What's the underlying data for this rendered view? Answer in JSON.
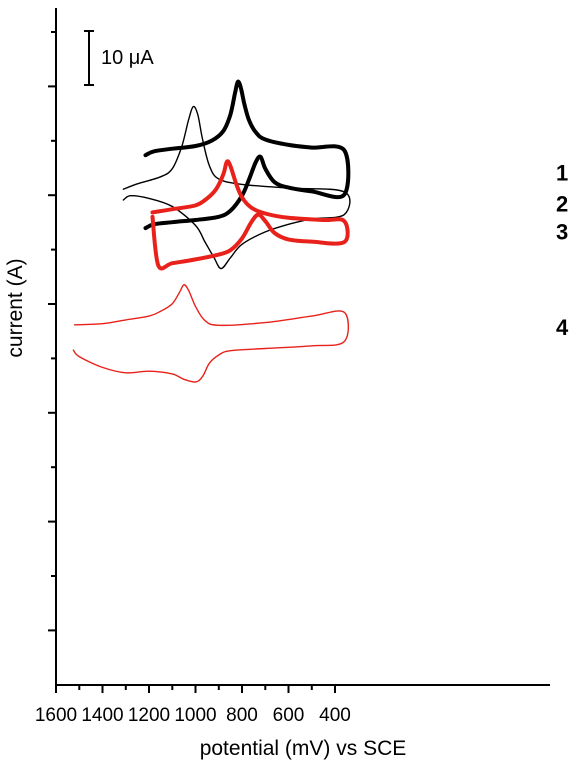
{
  "chart_data": {
    "type": "line",
    "title": "",
    "xlabel": "potential (mV) vs SCE",
    "ylabel": "current (A)",
    "xlim": [
      1600,
      360
    ],
    "x_reversed": true,
    "xticks": [
      "1600",
      "1400",
      "1200",
      "1000",
      "800",
      "600",
      "400"
    ],
    "scale_bar": "10 μA",
    "scale_bar_value_uA": 10,
    "y_tick_labels_shown": false,
    "series": [
      {
        "name": "1",
        "color": "#000000",
        "weight": "thick",
        "forward": [
          [
            1215,
            -13
          ],
          [
            1180,
            -12.3
          ],
          [
            1100,
            -11.8
          ],
          [
            1000,
            -11.3
          ],
          [
            930,
            -10.3
          ],
          [
            880,
            -8.5
          ],
          [
            850,
            -5.5
          ],
          [
            830,
            -1.5
          ],
          [
            818,
            0.6
          ],
          [
            805,
            -0.5
          ],
          [
            790,
            -3.5
          ],
          [
            770,
            -6.5
          ],
          [
            740,
            -8.8
          ],
          [
            700,
            -10.1
          ],
          [
            600,
            -11.1
          ],
          [
            500,
            -11.6
          ],
          [
            360,
            -12.1
          ]
        ],
        "reverse": [
          [
            360,
            -20.3
          ],
          [
            500,
            -19.7
          ],
          [
            600,
            -19.0
          ],
          [
            660,
            -18.0
          ],
          [
            700,
            -15.5
          ],
          [
            720,
            -13.3
          ],
          [
            740,
            -14.2
          ],
          [
            770,
            -17.5
          ],
          [
            800,
            -20.5
          ],
          [
            850,
            -23.3
          ],
          [
            900,
            -24.4
          ],
          [
            1000,
            -25.0
          ],
          [
            1100,
            -25.4
          ],
          [
            1180,
            -25.8
          ],
          [
            1215,
            -26.5
          ]
        ]
      },
      {
        "name": "2",
        "color": "#000000",
        "weight": "thin",
        "forward": [
          [
            1310,
            -19.3
          ],
          [
            1250,
            -18.3
          ],
          [
            1150,
            -17.0
          ],
          [
            1100,
            -15.5
          ],
          [
            1060,
            -11.5
          ],
          [
            1030,
            -6.5
          ],
          [
            1010,
            -4.0
          ],
          [
            990,
            -5.5
          ],
          [
            970,
            -10.0
          ],
          [
            940,
            -15.0
          ],
          [
            900,
            -17.4
          ],
          [
            800,
            -18.4
          ],
          [
            600,
            -19.1
          ],
          [
            360,
            -19.8
          ]
        ],
        "reverse": [
          [
            360,
            -24.0
          ],
          [
            500,
            -24.8
          ],
          [
            600,
            -25.8
          ],
          [
            700,
            -27.2
          ],
          [
            800,
            -29.5
          ],
          [
            850,
            -32.0
          ],
          [
            890,
            -34.0
          ],
          [
            920,
            -32.0
          ],
          [
            960,
            -29.0
          ],
          [
            1000,
            -26.0
          ],
          [
            1100,
            -22.5
          ],
          [
            1200,
            -21.0
          ],
          [
            1280,
            -20.5
          ],
          [
            1310,
            -21.3
          ]
        ]
      },
      {
        "name": "3",
        "color": "#e8221b",
        "weight": "thick",
        "forward": [
          [
            1185,
            -23.6
          ],
          [
            1100,
            -23.0
          ],
          [
            1000,
            -22.3
          ],
          [
            950,
            -21.0
          ],
          [
            910,
            -19.2
          ],
          [
            880,
            -16.5
          ],
          [
            865,
            -14.2
          ],
          [
            850,
            -15.0
          ],
          [
            825,
            -18.3
          ],
          [
            800,
            -20.8
          ],
          [
            760,
            -22.7
          ],
          [
            700,
            -23.8
          ],
          [
            600,
            -24.6
          ],
          [
            450,
            -25.0
          ],
          [
            360,
            -25.2
          ]
        ],
        "reverse": [
          [
            360,
            -29.1
          ],
          [
            500,
            -29.0
          ],
          [
            600,
            -28.6
          ],
          [
            660,
            -27.4
          ],
          [
            700,
            -25.2
          ],
          [
            730,
            -24.0
          ],
          [
            760,
            -25.4
          ],
          [
            800,
            -28.4
          ],
          [
            850,
            -30.6
          ],
          [
            900,
            -31.4
          ],
          [
            1000,
            -32.3
          ],
          [
            1100,
            -33.0
          ],
          [
            1160,
            -33.4
          ],
          [
            1185,
            -24.4
          ]
        ]
      },
      {
        "name": "4",
        "color": "#e8221b",
        "weight": "thin",
        "forward": [
          [
            1520,
            -44.4
          ],
          [
            1400,
            -44.2
          ],
          [
            1300,
            -43.5
          ],
          [
            1200,
            -42.8
          ],
          [
            1150,
            -41.9
          ],
          [
            1100,
            -40.5
          ],
          [
            1070,
            -38.5
          ],
          [
            1050,
            -37.0
          ],
          [
            1030,
            -38.0
          ],
          [
            1000,
            -41.0
          ],
          [
            960,
            -43.6
          ],
          [
            900,
            -44.5
          ],
          [
            700,
            -44.0
          ],
          [
            500,
            -42.8
          ],
          [
            360,
            -42.1
          ]
        ],
        "reverse": [
          [
            360,
            -47.5
          ],
          [
            500,
            -48.3
          ],
          [
            700,
            -48.8
          ],
          [
            850,
            -49.2
          ],
          [
            900,
            -50.0
          ],
          [
            940,
            -51.5
          ],
          [
            970,
            -54.0
          ],
          [
            1000,
            -55.0
          ],
          [
            1050,
            -54.5
          ],
          [
            1100,
            -53.5
          ],
          [
            1200,
            -53.0
          ],
          [
            1300,
            -53.3
          ],
          [
            1400,
            -52.3
          ],
          [
            1500,
            -50.3
          ],
          [
            1525,
            -49.1
          ]
        ]
      }
    ]
  }
}
